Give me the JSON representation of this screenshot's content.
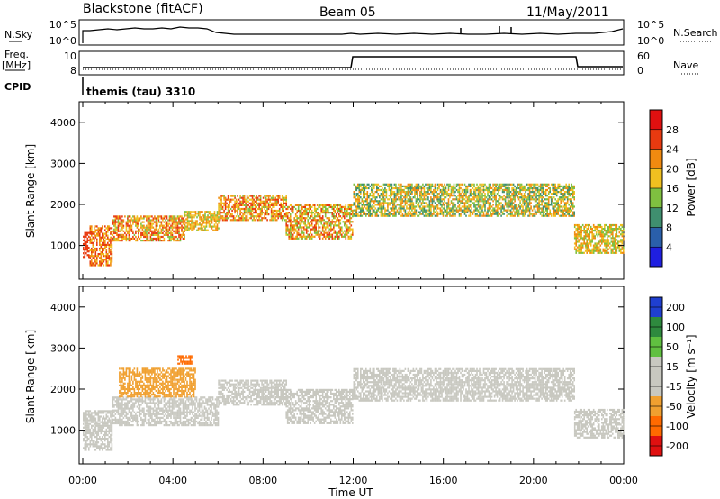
{
  "header": {
    "title": "Blackstone (fitACF)",
    "beam": "Beam 05",
    "date": "11/May/2011"
  },
  "params": {
    "nsky_label": "N.Sky",
    "nsky_ticks": [
      "10^5",
      "10^0"
    ],
    "nsearch_label": "N.Search",
    "nsearch_ticks": [
      "10^5",
      "10^0"
    ],
    "freq_label_1": "Freq.",
    "freq_label_2": "[MHz]",
    "freq_ticks": [
      "10",
      "8"
    ],
    "nave_label": "Nave",
    "nave_ticks": [
      "60",
      "0"
    ],
    "cpid_label": "CPID",
    "cpid_value": "themis (tau) 3310"
  },
  "colors": {
    "power": [
      "#1f1fe0",
      "#2a5faa",
      "#3f8f6f",
      "#7fc040",
      "#f0c020",
      "#f08a10",
      "#e83a10",
      "#e01010"
    ],
    "velocity": [
      "#e01010",
      "#ff6a00",
      "#f0a030",
      "#c8c8c0",
      "#c8c8c0",
      "#60c040",
      "#2e8a3e",
      "#1f3fd0"
    ],
    "velocity_gray": "#c8c8c0"
  },
  "chart_data": [
    {
      "type": "heatmap",
      "name": "power",
      "xlabel": "Time UT",
      "ylabel": "Slant Range [km]",
      "x_range_hours": [
        0,
        24
      ],
      "ylim": [
        180,
        4500
      ],
      "x_tick_labels": [
        "00:00",
        "04:00",
        "08:00",
        "12:00",
        "16:00",
        "20:00",
        "00:00"
      ],
      "y_ticks": [
        1000,
        2000,
        3000,
        4000
      ],
      "colorbar_label": "Power [dB]",
      "colorbar_ticks": [
        "28",
        "24",
        "20",
        "16",
        "12",
        "8",
        "4"
      ],
      "colorbar_range": [
        0,
        32
      ],
      "echo_bands": [
        {
          "t0": 0,
          "t1": 0.3,
          "r0": 700,
          "r1": 1300,
          "vals": [
            24,
            26
          ]
        },
        {
          "t0": 0.3,
          "t1": 1.3,
          "r0": 500,
          "r1": 1450,
          "vals": [
            18,
            28
          ]
        },
        {
          "t0": 1.3,
          "t1": 4.5,
          "r0": 1100,
          "r1": 1700,
          "vals": [
            14,
            28
          ]
        },
        {
          "t0": 4.5,
          "t1": 6,
          "r0": 1350,
          "r1": 1800,
          "vals": [
            14,
            24
          ]
        },
        {
          "t0": 6,
          "t1": 9,
          "r0": 1600,
          "r1": 2200,
          "vals": [
            14,
            28
          ]
        },
        {
          "t0": 9,
          "t1": 12,
          "r0": 1150,
          "r1": 2000,
          "vals": [
            12,
            28
          ]
        },
        {
          "t0": 12,
          "t1": 21.8,
          "r0": 1700,
          "r1": 2500,
          "vals": [
            8,
            24
          ]
        },
        {
          "t0": 21.8,
          "t1": 24,
          "r0": 800,
          "r1": 1500,
          "vals": [
            12,
            24
          ]
        }
      ]
    },
    {
      "type": "heatmap",
      "name": "velocity",
      "xlabel": "Time UT",
      "ylabel": "Slant Range [km]",
      "x_range_hours": [
        0,
        24
      ],
      "ylim": [
        180,
        4500
      ],
      "x_tick_labels": [
        "00:00",
        "04:00",
        "08:00",
        "12:00",
        "16:00",
        "20:00",
        "00:00"
      ],
      "y_ticks": [
        1000,
        2000,
        3000,
        4000
      ],
      "colorbar_label": "Velocity [m s⁻¹]",
      "colorbar_ticks": [
        "200",
        "100",
        "50",
        "15",
        "-15",
        "-50",
        "-100",
        "-200"
      ],
      "echo_bands": [
        {
          "t0": 0,
          "t1": 1.3,
          "r0": 500,
          "r1": 1450,
          "vals": [
            -15,
            15
          ]
        },
        {
          "t0": 1.3,
          "t1": 6,
          "r0": 1100,
          "r1": 1800,
          "vals": [
            -15,
            15
          ]
        },
        {
          "t0": 6,
          "t1": 9,
          "r0": 1600,
          "r1": 2200,
          "vals": [
            -15,
            15
          ]
        },
        {
          "t0": 9,
          "t1": 12,
          "r0": 1150,
          "r1": 2000,
          "vals": [
            -15,
            15
          ]
        },
        {
          "t0": 12,
          "t1": 21.8,
          "r0": 1700,
          "r1": 2500,
          "vals": [
            -15,
            15
          ]
        },
        {
          "t0": 21.8,
          "t1": 24,
          "r0": 800,
          "r1": 1500,
          "vals": [
            -50,
            15
          ]
        },
        {
          "t0": 1.6,
          "t1": 5,
          "r0": 1800,
          "r1": 2500,
          "vals": [
            -100,
            -50
          ]
        },
        {
          "t0": 4.2,
          "t1": 4.8,
          "r0": 2600,
          "r1": 2800,
          "vals": [
            -200,
            -100
          ]
        }
      ]
    }
  ]
}
